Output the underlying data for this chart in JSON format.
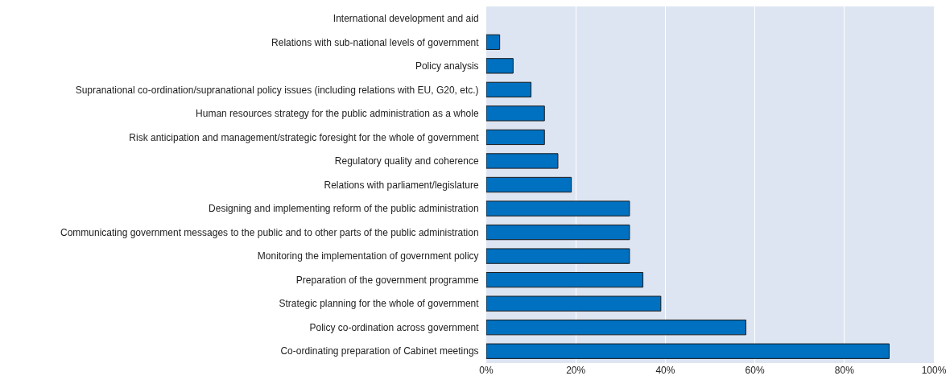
{
  "chart_data": {
    "type": "bar",
    "orientation": "horizontal",
    "categories": [
      "International development and aid",
      "Relations with sub-national levels of government",
      "Policy analysis",
      "Supranational co-ordination/supranational policy issues (including relations with EU, G20, etc.)",
      "Human resources strategy for the public administration as a whole",
      "Risk anticipation and management/strategic foresight for the whole of government",
      "Regulatory quality and coherence",
      "Relations with parliament/legislature",
      "Designing and implementing reform of the public administration",
      "Communicating government messages to the public and to other parts of the public administration",
      "Monitoring the implementation of government policy",
      "Preparation of the government programme",
      "Strategic planning for the whole of government",
      "Policy co-ordination across government",
      "Co-ordinating preparation of Cabinet meetings"
    ],
    "values": [
      0,
      3,
      6,
      10,
      13,
      13,
      16,
      19,
      32,
      32,
      32,
      35,
      39,
      58,
      90
    ],
    "color": "#0070c0",
    "xlim": [
      0,
      100
    ],
    "xticks": [
      {
        "value": 0,
        "label": "0%"
      },
      {
        "value": 20,
        "label": "20%"
      },
      {
        "value": 40,
        "label": "40%"
      },
      {
        "value": 60,
        "label": "60%"
      },
      {
        "value": 80,
        "label": "80%"
      },
      {
        "value": 100,
        "label": "100%"
      }
    ],
    "grid": "x"
  }
}
